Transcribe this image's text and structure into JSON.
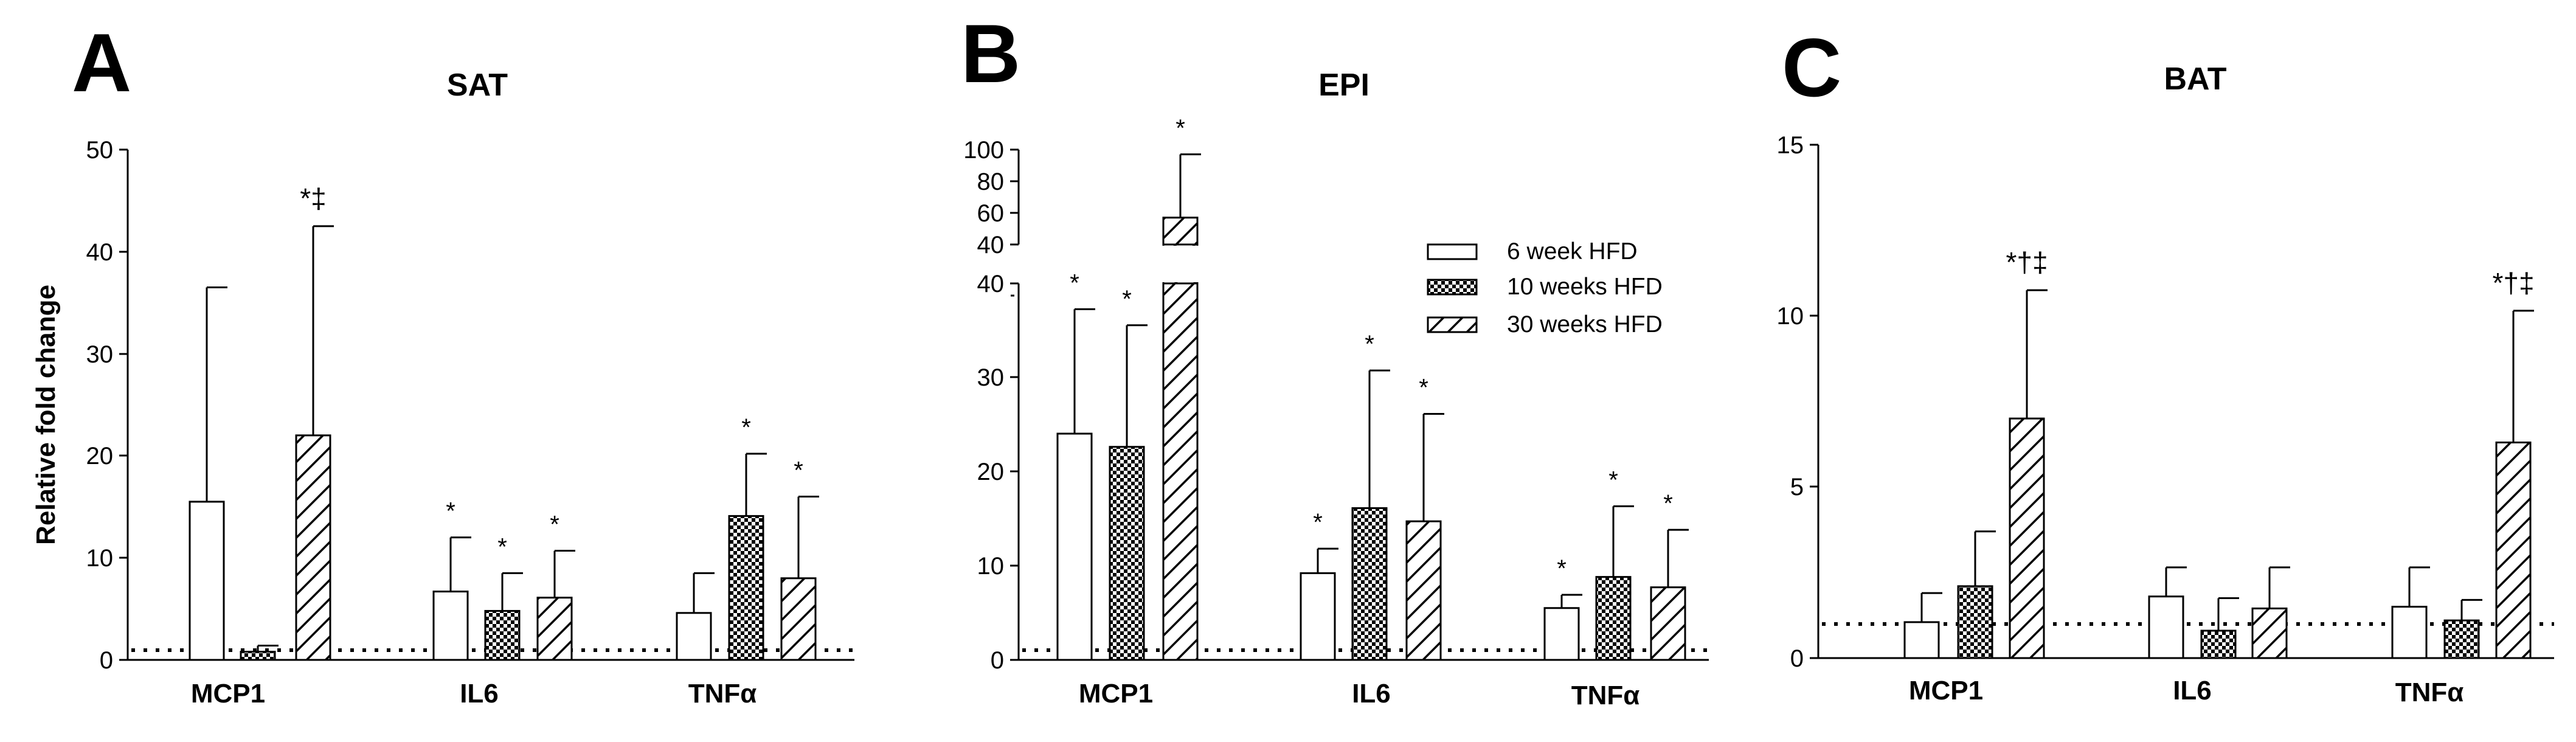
{
  "chart_data": [
    {
      "type": "bar",
      "panel_letter": "A",
      "title": "SAT",
      "ylabel": "Relative fold change",
      "categories": [
        "MCP1",
        "IL6",
        "TNFα"
      ],
      "ylim": [
        0,
        50
      ],
      "yticks": [
        "0",
        "10",
        "20",
        "30",
        "40",
        "50"
      ],
      "baseline": 1,
      "series": [
        {
          "name": "6 week HFD",
          "values": [
            15.5,
            6.7,
            4.6
          ],
          "errors": [
            21.0,
            5.3,
            3.9
          ],
          "annotations": [
            "",
            "*",
            ""
          ]
        },
        {
          "name": "10 weeks HFD",
          "values": [
            0.8,
            4.8,
            14.1
          ],
          "errors": [
            0.6,
            3.7,
            6.1
          ],
          "annotations": [
            "",
            "*",
            "*"
          ]
        },
        {
          "name": "30 weeks HFD",
          "values": [
            22.0,
            6.1,
            8.0
          ],
          "errors": [
            20.5,
            4.6,
            8.0
          ],
          "annotations": [
            "*‡",
            "*",
            "*"
          ]
        }
      ]
    },
    {
      "type": "bar",
      "panel_letter": "B",
      "title": "EPI",
      "ylabel": "",
      "categories": [
        "MCP1",
        "IL6",
        "TNFα"
      ],
      "ylim": [
        0,
        100
      ],
      "axis_break": [
        40,
        40
      ],
      "yticks": [
        "0",
        "10",
        "20",
        "30",
        "40",
        "40",
        "60",
        "80",
        "100"
      ],
      "baseline": 1,
      "series": [
        {
          "name": "6 week HFD",
          "values": [
            24.0,
            9.2,
            5.5
          ],
          "errors": [
            13.2,
            2.6,
            1.4
          ],
          "annotations": [
            "*",
            "*",
            "*"
          ]
        },
        {
          "name": "10 weeks HFD",
          "values": [
            22.6,
            16.1,
            8.8
          ],
          "errors": [
            12.9,
            14.6,
            7.5
          ],
          "annotations": [
            "*",
            "*",
            "*"
          ]
        },
        {
          "name": "30 weeks HFD",
          "values": [
            57.0,
            14.7,
            7.7
          ],
          "errors": [
            40.0,
            11.4,
            6.1
          ],
          "annotations": [
            "*",
            "*",
            "*"
          ]
        }
      ]
    },
    {
      "type": "bar",
      "panel_letter": "C",
      "title": "BAT",
      "ylabel": "",
      "categories": [
        "MCP1",
        "IL6",
        "TNFα"
      ],
      "ylim": [
        0,
        15
      ],
      "yticks": [
        "0",
        "5",
        "10",
        "15"
      ],
      "baseline": 1,
      "series": [
        {
          "name": "6 week HFD",
          "values": [
            1.05,
            1.8,
            1.5
          ],
          "errors": [
            0.85,
            0.85,
            1.15
          ],
          "annotations": [
            "",
            "",
            ""
          ]
        },
        {
          "name": "10 weeks HFD",
          "values": [
            2.1,
            0.8,
            1.1
          ],
          "errors": [
            1.6,
            0.95,
            0.6
          ],
          "annotations": [
            "",
            "",
            ""
          ]
        },
        {
          "name": "30 weeks HFD",
          "values": [
            7.0,
            1.45,
            6.3
          ],
          "errors": [
            3.75,
            1.2,
            3.85
          ],
          "annotations": [
            "*†‡",
            "",
            "*†‡"
          ]
        }
      ]
    }
  ],
  "legend": [
    "6 week HFD",
    "10 weeks HFD",
    "30 weeks HFD"
  ]
}
